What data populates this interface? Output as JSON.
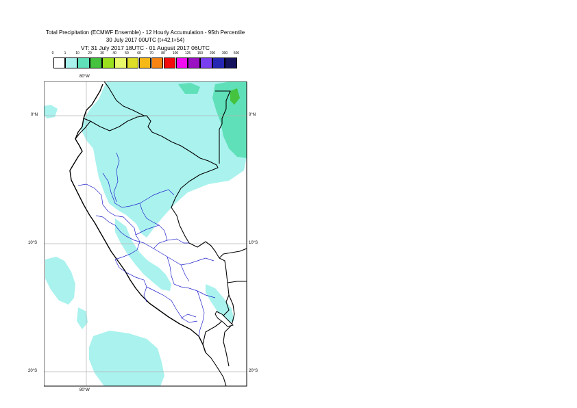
{
  "title": {
    "line1": "Total Precipitation (ECMWF Ensemble) - 12 Hourly Accumulation - 95th Percentile",
    "line2": "30 July 2017 00UTC (t+42,t+54)",
    "line3": "VT: 31 July 2017 18UTC - 01 August 2017 06UTC"
  },
  "legend": {
    "labels": [
      "0",
      "1",
      "10",
      "20",
      "30",
      "40",
      "50",
      "60",
      "70",
      "80",
      "100",
      "125",
      "150",
      "200",
      "300",
      "500"
    ],
    "colors": [
      "#ffffff",
      "#a9f2ee",
      "#5fe0b8",
      "#45c23e",
      "#9be01c",
      "#e8f868",
      "#dede27",
      "#f5b816",
      "#f68412",
      "#f40b0b",
      "#f20cf2",
      "#9a12c2",
      "#7a3ff0",
      "#2628b4",
      "#15135e"
    ]
  },
  "map": {
    "lon_top": "80°W",
    "lon_bottom": "80°W",
    "lat_labels": [
      {
        "left": "0°N",
        "right": "0°N"
      },
      {
        "left": "10°S",
        "right": "10°S"
      },
      {
        "left": "20°S",
        "right": "20°S"
      }
    ]
  }
}
